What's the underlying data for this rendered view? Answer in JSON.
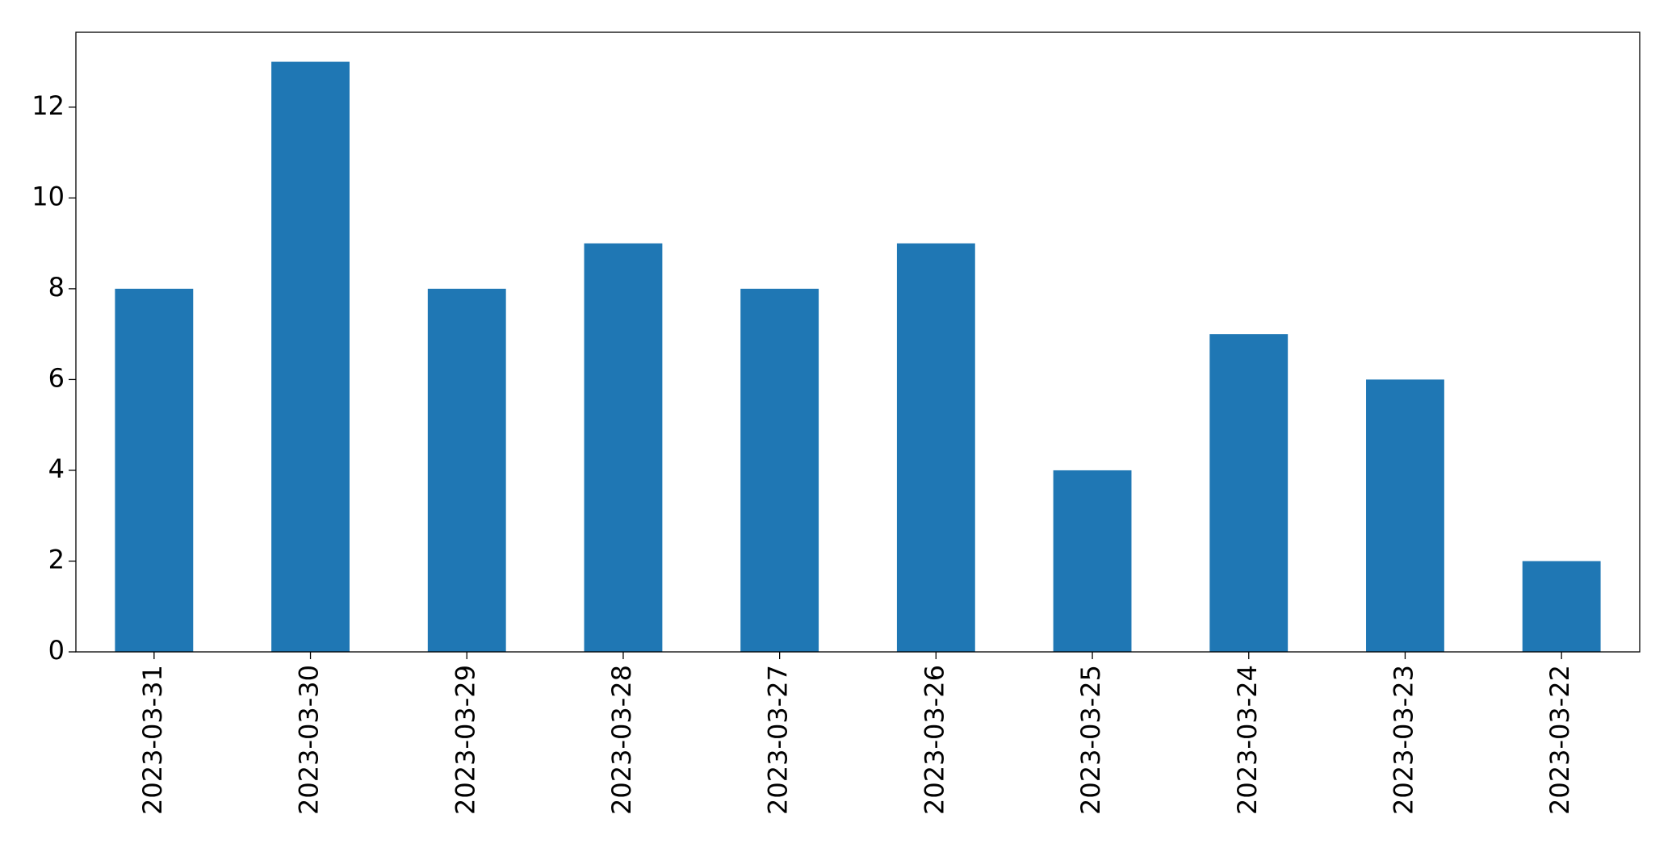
{
  "chart_data": {
    "type": "bar",
    "categories": [
      "2023-03-31",
      "2023-03-30",
      "2023-03-29",
      "2023-03-28",
      "2023-03-27",
      "2023-03-26",
      "2023-03-25",
      "2023-03-24",
      "2023-03-23",
      "2023-03-22"
    ],
    "values": [
      8,
      13,
      8,
      9,
      8,
      9,
      4,
      7,
      6,
      2
    ],
    "color": "#1f77b4",
    "ylim": [
      0,
      13.65
    ],
    "yticks": [
      0,
      2,
      4,
      6,
      8,
      10,
      12
    ],
    "grid": false
  }
}
